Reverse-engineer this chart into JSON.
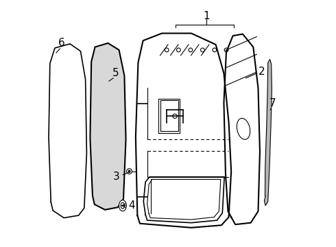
{
  "bg_color": "#ffffff",
  "line_color": "#000000",
  "label_color": "#000000",
  "label_fontsize": 11,
  "figsize": [
    4.9,
    3.6
  ],
  "dpi": 100,
  "lw_thin": 0.8,
  "lw_med": 1.2,
  "lw_thick": 1.5
}
